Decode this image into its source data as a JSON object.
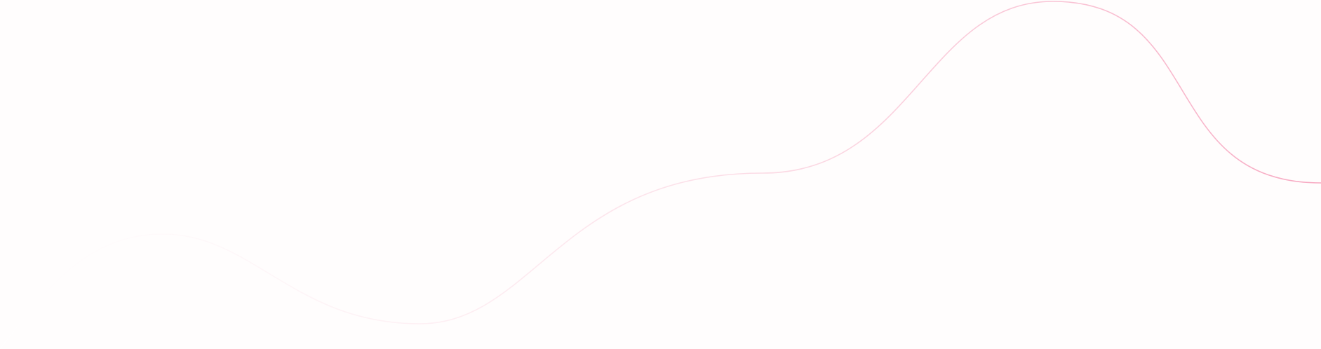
{
  "background_color": "#fffdfd",
  "wave": {
    "stroke_start_color": "#ffffff",
    "stroke_end_color": "#f7a9c2"
  }
}
